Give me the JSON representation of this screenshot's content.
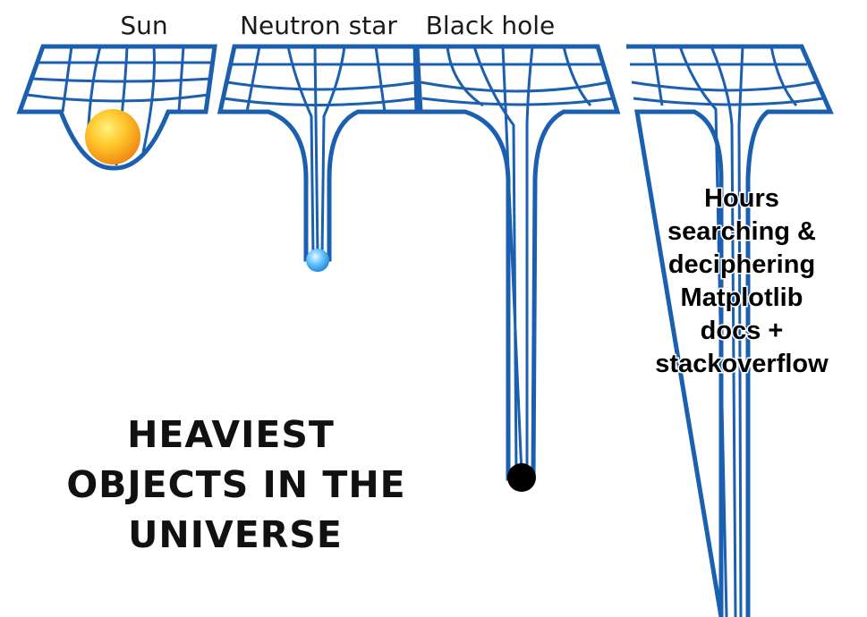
{
  "labels": {
    "sun": "Sun",
    "neutron_star": "Neutron star",
    "black_hole": "Black hole"
  },
  "caption": {
    "lines": [
      "Hours",
      "searching &",
      "deciphering",
      "Matplotlib",
      "docs +",
      "stackoverflow"
    ]
  },
  "headline": {
    "lines": [
      "HEAVIEST",
      "OBJECTS IN THE",
      "UNIVERSE"
    ]
  },
  "colors": {
    "grid_blue": "#1b5fb0",
    "sun_inner": "#ffe04a",
    "sun_outer": "#f08a12",
    "neutron_star": "#3fa9f5",
    "black_hole": "#000000"
  }
}
